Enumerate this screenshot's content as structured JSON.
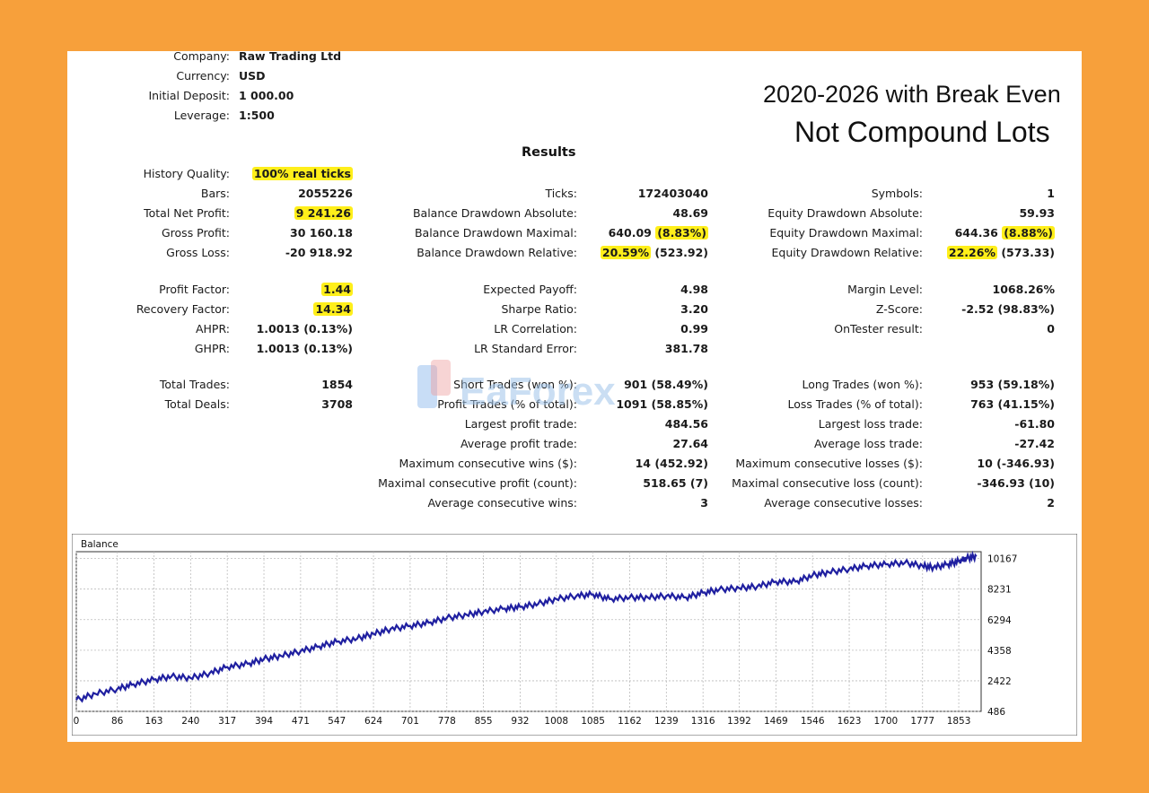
{
  "header": {
    "title_line1": "2020-2026 with Break Even",
    "title_line2": "Not Compound Lots",
    "results_heading": "Results",
    "watermark": "EaForex"
  },
  "info": [
    {
      "label": "Company:",
      "value": "Raw Trading Ltd"
    },
    {
      "label": "Currency:",
      "value": "USD"
    },
    {
      "label": "Initial Deposit:",
      "value": "1 000.00"
    },
    {
      "label": "Leverage:",
      "value": "1:500"
    }
  ],
  "col1": [
    {
      "label": "History Quality:",
      "value": "100% real ticks",
      "highlight": true
    },
    {
      "label": "Bars:",
      "value": "2055226"
    },
    {
      "label": "Total Net Profit:",
      "value": "9 241.26",
      "highlight": true
    },
    {
      "label": "Gross Profit:",
      "value": "30 160.18"
    },
    {
      "label": "Gross Loss:",
      "value": "-20 918.92"
    },
    {
      "label": "Profit Factor:",
      "value": "1.44",
      "highlight": true
    },
    {
      "label": "Recovery Factor:",
      "value": "14.34",
      "highlight": true
    },
    {
      "label": "AHPR:",
      "value": "1.0013 (0.13%)"
    },
    {
      "label": "GHPR:",
      "value": "1.0013 (0.13%)"
    },
    {
      "label": "Total Trades:",
      "value": "1854"
    },
    {
      "label": "Total Deals:",
      "value": "3708"
    }
  ],
  "col2": [
    {
      "label": "Ticks:",
      "value": "172403040"
    },
    {
      "label": "Balance Drawdown Absolute:",
      "value": "48.69"
    },
    {
      "label": "Balance Drawdown Maximal:",
      "value": "640.09",
      "value_hl": "(8.83%)"
    },
    {
      "label": "Balance Drawdown Relative:",
      "value_hl_first": "20.59%",
      "value": "(523.92)"
    },
    {
      "label": "Expected Payoff:",
      "value": "4.98"
    },
    {
      "label": "Sharpe Ratio:",
      "value": "3.20"
    },
    {
      "label": "LR Correlation:",
      "value": "0.99"
    },
    {
      "label": "LR Standard Error:",
      "value": "381.78"
    },
    {
      "label": "Short Trades (won %):",
      "value": "901 (58.49%)"
    },
    {
      "label": "Profit Trades (% of total):",
      "value": "1091 (58.85%)"
    },
    {
      "label": "Largest profit trade:",
      "value": "484.56"
    },
    {
      "label": "Average profit trade:",
      "value": "27.64"
    },
    {
      "label": "Maximum consecutive wins ($):",
      "value": "14 (452.92)"
    },
    {
      "label": "Maximal consecutive profit (count):",
      "value": "518.65 (7)"
    },
    {
      "label": "Average consecutive wins:",
      "value": "3"
    }
  ],
  "col3": [
    {
      "label": "Symbols:",
      "value": "1"
    },
    {
      "label": "Equity Drawdown Absolute:",
      "value": "59.93"
    },
    {
      "label": "Equity Drawdown Maximal:",
      "value": "644.36",
      "value_hl": "(8.88%)"
    },
    {
      "label": "Equity Drawdown Relative:",
      "value_hl_first": "22.26%",
      "value": "(573.33)"
    },
    {
      "label": "Margin Level:",
      "value": "1068.26%"
    },
    {
      "label": "Z-Score:",
      "value": "-2.52 (98.83%)"
    },
    {
      "label": "OnTester result:",
      "value": "0"
    },
    {
      "label": "Long Trades (won %):",
      "value": "953 (59.18%)"
    },
    {
      "label": "Loss Trades (% of total):",
      "value": "763 (41.15%)"
    },
    {
      "label": "Largest loss trade:",
      "value": "-61.80"
    },
    {
      "label": "Average loss trade:",
      "value": "-27.42"
    },
    {
      "label": "Maximum consecutive losses ($):",
      "value": "10 (-346.93)"
    },
    {
      "label": "Maximal consecutive loss (count):",
      "value": "-346.93 (10)"
    },
    {
      "label": "Average consecutive losses:",
      "value": "2"
    }
  ],
  "colors": {
    "background": "#f7a03b",
    "highlight": "#ffef1a",
    "line": "#1f1fa0"
  },
  "chart_data": {
    "type": "line",
    "title": "Balance",
    "x_ticks": [
      "0",
      "86",
      "163",
      "240",
      "317",
      "394",
      "471",
      "547",
      "624",
      "701",
      "778",
      "855",
      "932",
      "1008",
      "1085",
      "1162",
      "1239",
      "1316",
      "1392",
      "1469",
      "1546",
      "1623",
      "1700",
      "1777",
      "1853"
    ],
    "y_ticks": [
      "10167",
      "8231",
      "6294",
      "4358",
      "2422",
      "486"
    ],
    "xlim": [
      0,
      1900
    ],
    "ylim": [
      486,
      10600
    ],
    "grid": true,
    "series": [
      {
        "x": [
          0,
          40,
          86,
          120,
          163,
          200,
          240,
          280,
          317,
          360,
          394,
          430,
          471,
          510,
          547,
          590,
          624,
          660,
          701,
          740,
          778,
          820,
          855,
          900,
          932,
          970,
          1008,
          1050,
          1085,
          1120,
          1162,
          1200,
          1239,
          1280,
          1316,
          1350,
          1392,
          1430,
          1469,
          1510,
          1546,
          1580,
          1623,
          1660,
          1700,
          1740,
          1777,
          1800,
          1830,
          1853,
          1870,
          1890
        ],
        "y": [
          1200,
          1600,
          1900,
          2200,
          2500,
          2700,
          2600,
          2900,
          3300,
          3500,
          3800,
          4000,
          4300,
          4600,
          4900,
          5100,
          5400,
          5700,
          5900,
          6100,
          6400,
          6600,
          6800,
          7000,
          7100,
          7300,
          7600,
          7800,
          7900,
          7600,
          7700,
          7700,
          7800,
          7700,
          8000,
          8200,
          8300,
          8400,
          8700,
          8700,
          9100,
          9300,
          9500,
          9700,
          9800,
          9900,
          9700,
          9600,
          9800,
          10000,
          10200,
          10300
        ]
      }
    ]
  }
}
